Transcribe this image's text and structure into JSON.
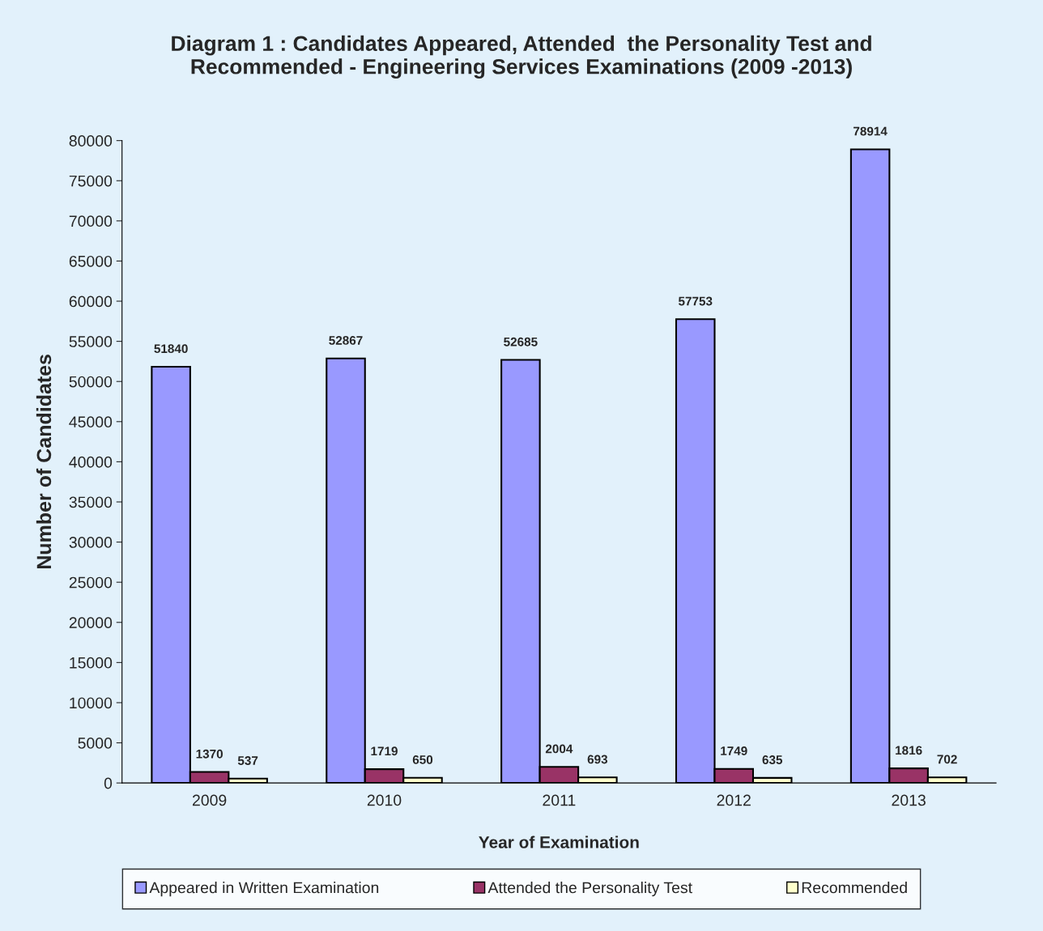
{
  "chart_data": {
    "type": "bar",
    "title": "Diagram 1 : Candidates Appeared, Attended  the Personality Test and\nRecommended - Engineering Services Examinations (2009 -2013)",
    "xlabel": "Year of Examination",
    "ylabel": "Number of Candidates",
    "categories": [
      "2009",
      "2010",
      "2011",
      "2012",
      "2013"
    ],
    "series": [
      {
        "name": "Appeared in Written Examination",
        "color": "#9999ff",
        "values": [
          51840,
          52867,
          52685,
          57753,
          78914
        ]
      },
      {
        "name": "Attended the Personality Test",
        "color": "#993366",
        "values": [
          1370,
          1719,
          2004,
          1749,
          1816
        ]
      },
      {
        "name": "Recommended",
        "color": "#ffffcc",
        "values": [
          537,
          650,
          693,
          635,
          702
        ]
      }
    ],
    "ylim": [
      0,
      80000
    ],
    "yticks": [
      0,
      5000,
      10000,
      15000,
      20000,
      25000,
      30000,
      35000,
      40000,
      45000,
      50000,
      55000,
      60000,
      65000,
      70000,
      75000,
      80000
    ],
    "data_labels": true,
    "legend": "bottom",
    "grid": false
  }
}
